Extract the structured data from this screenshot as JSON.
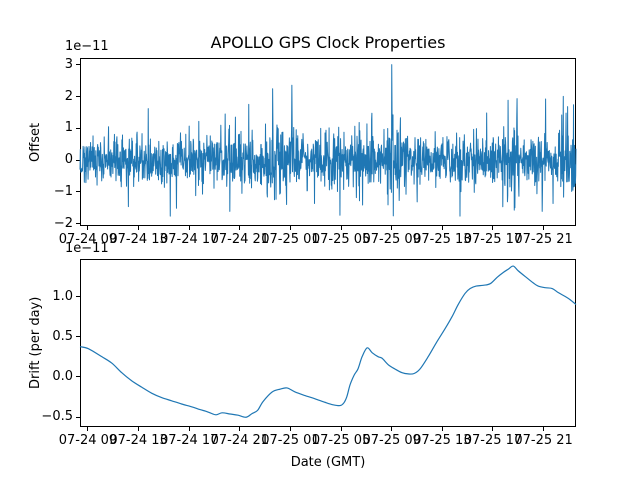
{
  "figure": {
    "title": "APOLLO GPS Clock Properties",
    "background": "#ffffff",
    "line_color": "#1f77b4",
    "text_color": "#000000"
  },
  "axes_shared": {
    "xlabel": "Date (GMT)",
    "x_unit": "hours since 07-24 09:00 GMT",
    "xlim_hours": [
      -0.63,
      38.56
    ],
    "x_tick_hours": [
      0,
      4,
      8,
      12,
      16,
      20,
      24,
      28,
      32,
      36
    ],
    "x_tick_labels": [
      "07-24 09",
      "07-24 13",
      "07-24 17",
      "07-24 21",
      "07-25 01",
      "07-25 05",
      "07-25 09",
      "07-25 13",
      "07-25 17",
      "07-25 21"
    ],
    "grid": false,
    "legend": "none"
  },
  "chart_data": [
    {
      "type": "line",
      "name": "gps-clock-offset",
      "ylabel": "Offset",
      "scale_text": "1e−11",
      "ylim": [
        -2.06,
        3.23
      ],
      "yticks": [
        {
          "value": 3,
          "label": "3"
        },
        {
          "value": 2,
          "label": "2"
        },
        {
          "value": 1,
          "label": "1"
        },
        {
          "value": 0,
          "label": "0"
        },
        {
          "value": -1,
          "label": "−1"
        },
        {
          "value": -2,
          "label": "−2"
        }
      ],
      "series": {
        "kind": "noise",
        "description": "dense noisy clock offset trace, mean ~0, typical band ±1.0 (×1e-11)",
        "points_n": 1600,
        "seed": 1337,
        "mean": 0,
        "base_std": 0.4,
        "clip": [
          -1.88,
          3.02
        ],
        "bursts": [
          [
            2.5,
            3.5,
            1.3
          ],
          [
            11.5,
            13.0,
            1.4
          ],
          [
            13.9,
            16.4,
            1.6
          ],
          [
            18.3,
            19.3,
            1.4
          ],
          [
            21.0,
            22.5,
            1.4
          ],
          [
            23.3,
            24.7,
            1.5
          ],
          [
            32.5,
            34.4,
            1.6
          ],
          [
            37.0,
            38.56,
            1.5
          ]
        ],
        "spikes": [
          [
            3.2,
            -1.45
          ],
          [
            6.5,
            -1.75
          ],
          [
            7.0,
            -1.5
          ],
          [
            11.2,
            -1.6
          ],
          [
            14.6,
            2.26
          ],
          [
            16.1,
            2.37
          ],
          [
            17.9,
            -1.35
          ],
          [
            19.9,
            -1.72
          ],
          [
            21.7,
            -1.4
          ],
          [
            24.0,
            3.02
          ],
          [
            26.0,
            -1.3
          ],
          [
            29.4,
            -1.75
          ],
          [
            31.5,
            1.5
          ],
          [
            33.2,
            1.9
          ],
          [
            33.9,
            1.95
          ],
          [
            35.9,
            -1.6
          ],
          [
            36.15,
            1.94
          ],
          [
            36.75,
            -1.35
          ],
          [
            37.55,
            2.02
          ],
          [
            37.9,
            1.7
          ]
        ],
        "line_width": 1.0
      }
    },
    {
      "type": "line",
      "name": "gps-clock-drift",
      "ylabel": "Drift (per day)",
      "scale_text": "1e−11",
      "xlabel": "Date (GMT)",
      "ylim": [
        -0.627,
        1.468
      ],
      "yticks": [
        {
          "value": 1.0,
          "label": "1.0"
        },
        {
          "value": 0.5,
          "label": "0.5"
        },
        {
          "value": 0.0,
          "label": "0.0"
        },
        {
          "value": -0.5,
          "label": "−0.5"
        }
      ],
      "series": {
        "kind": "points",
        "description": "smooth clock drift per day (×1e-11) vs hours since 07-24 09:00",
        "line_width": 1.2,
        "points": [
          [
            -0.63,
            0.375
          ],
          [
            0.03,
            0.35
          ],
          [
            1.09,
            0.25
          ],
          [
            1.88,
            0.17
          ],
          [
            2.67,
            0.05
          ],
          [
            3.45,
            -0.05
          ],
          [
            4.24,
            -0.13
          ],
          [
            5.03,
            -0.205
          ],
          [
            5.82,
            -0.26
          ],
          [
            6.61,
            -0.3
          ],
          [
            7.4,
            -0.34
          ],
          [
            8.19,
            -0.375
          ],
          [
            8.85,
            -0.41
          ],
          [
            9.3,
            -0.43
          ],
          [
            9.64,
            -0.45
          ],
          [
            10.12,
            -0.475
          ],
          [
            10.59,
            -0.45
          ],
          [
            11.23,
            -0.465
          ],
          [
            11.86,
            -0.48
          ],
          [
            12.49,
            -0.505
          ],
          [
            12.96,
            -0.46
          ],
          [
            13.4,
            -0.42
          ],
          [
            13.83,
            -0.31
          ],
          [
            14.55,
            -0.19
          ],
          [
            15.18,
            -0.155
          ],
          [
            15.73,
            -0.14
          ],
          [
            16.36,
            -0.19
          ],
          [
            17.15,
            -0.235
          ],
          [
            17.94,
            -0.275
          ],
          [
            18.74,
            -0.32
          ],
          [
            19.37,
            -0.35
          ],
          [
            19.92,
            -0.36
          ],
          [
            20.2,
            -0.33
          ],
          [
            20.45,
            -0.25
          ],
          [
            20.71,
            -0.1
          ],
          [
            21.03,
            0.02
          ],
          [
            21.34,
            0.1
          ],
          [
            21.66,
            0.25
          ],
          [
            22.06,
            0.36
          ],
          [
            22.45,
            0.3
          ],
          [
            22.92,
            0.25
          ],
          [
            23.24,
            0.23
          ],
          [
            23.72,
            0.15
          ],
          [
            24.27,
            0.095
          ],
          [
            24.82,
            0.05
          ],
          [
            25.3,
            0.035
          ],
          [
            25.77,
            0.04
          ],
          [
            26.25,
            0.1
          ],
          [
            26.88,
            0.25
          ],
          [
            27.51,
            0.42
          ],
          [
            28.22,
            0.6
          ],
          [
            28.77,
            0.75
          ],
          [
            29.25,
            0.9
          ],
          [
            29.8,
            1.04
          ],
          [
            30.2,
            1.1
          ],
          [
            30.67,
            1.13
          ],
          [
            31.23,
            1.14
          ],
          [
            31.78,
            1.16
          ],
          [
            32.33,
            1.24
          ],
          [
            32.81,
            1.3
          ],
          [
            33.2,
            1.34
          ],
          [
            33.6,
            1.38
          ],
          [
            34.0,
            1.32
          ],
          [
            34.7,
            1.23
          ],
          [
            35.18,
            1.17
          ],
          [
            35.57,
            1.13
          ],
          [
            36.13,
            1.11
          ],
          [
            36.68,
            1.1
          ],
          [
            37.15,
            1.05
          ],
          [
            37.71,
            1.0
          ],
          [
            38.1,
            0.96
          ],
          [
            38.56,
            0.9
          ]
        ]
      }
    }
  ]
}
